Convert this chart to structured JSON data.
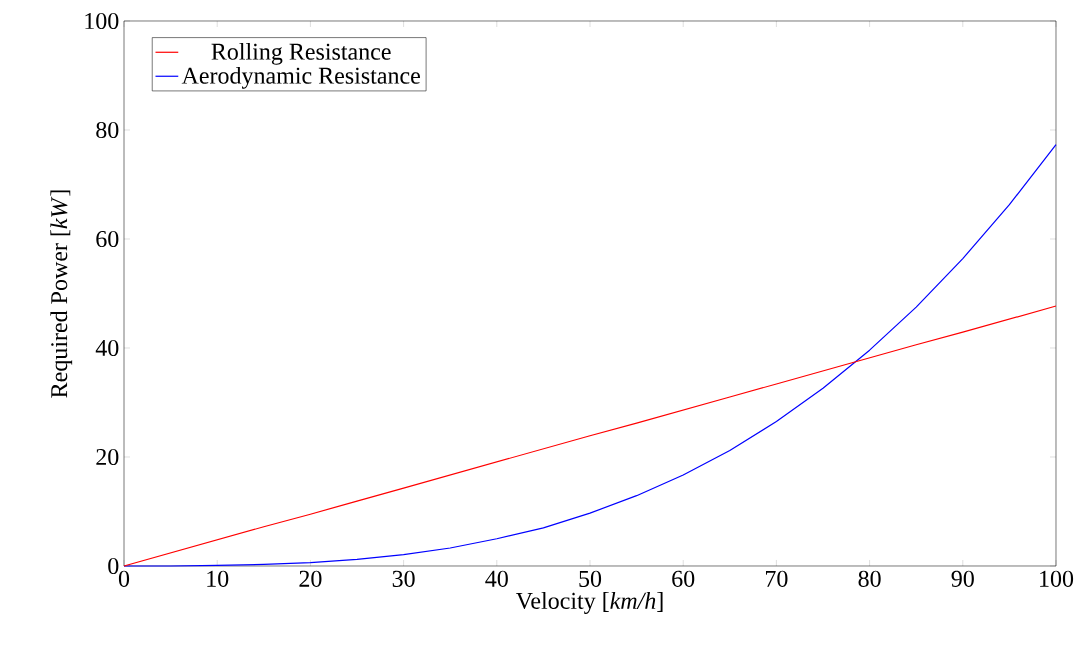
{
  "chart_data": {
    "type": "line",
    "xlabel": "Velocity [*km/h*]",
    "ylabel": "Required Power [*kW*]",
    "x": [
      0,
      5,
      10,
      15,
      20,
      25,
      30,
      35,
      40,
      45,
      50,
      55,
      60,
      65,
      70,
      75,
      80,
      85,
      90,
      95,
      100
    ],
    "series": [
      {
        "name": "Rolling Resistance",
        "color": "#ff0000",
        "values": [
          0,
          2.4,
          4.8,
          7.2,
          9.5,
          11.9,
          14.3,
          16.7,
          19.1,
          21.5,
          23.9,
          26.2,
          28.6,
          31.0,
          33.4,
          35.8,
          38.2,
          40.6,
          42.9,
          45.3,
          47.7
        ]
      },
      {
        "name": "Aerodynamic Resistance",
        "color": "#0000ff",
        "values": [
          0,
          0.0,
          0.1,
          0.3,
          0.6,
          1.2,
          2.1,
          3.3,
          5.0,
          7.0,
          9.7,
          12.9,
          16.7,
          21.2,
          26.5,
          32.6,
          39.6,
          47.5,
          56.4,
          66.3,
          77.3
        ]
      }
    ],
    "xlim": [
      0,
      100
    ],
    "ylim": [
      0,
      100
    ],
    "xticks": [
      0,
      10,
      20,
      30,
      40,
      50,
      60,
      70,
      80,
      90,
      100
    ],
    "yticks": [
      0,
      20,
      40,
      60,
      80,
      100
    ],
    "legend": "top left"
  }
}
